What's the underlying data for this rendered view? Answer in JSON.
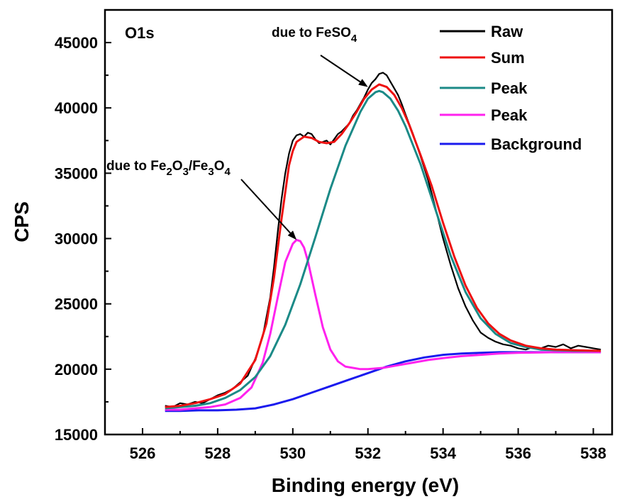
{
  "chart_data": {
    "type": "line",
    "panel_label": "O1s",
    "xlabel": "Binding energy (eV)",
    "ylabel": "CPS",
    "xlim": [
      525,
      538.5
    ],
    "ylim": [
      15000,
      47500
    ],
    "x_ticks": [
      526,
      528,
      530,
      532,
      534,
      536,
      538
    ],
    "y_ticks": [
      15000,
      20000,
      25000,
      30000,
      35000,
      40000,
      45000
    ],
    "legend_position": "top-right",
    "series": [
      {
        "name": "Raw",
        "color": "#000000",
        "x": [
          526.6,
          526.8,
          527.0,
          527.2,
          527.4,
          527.6,
          527.8,
          528.0,
          528.2,
          528.4,
          528.6,
          528.8,
          529.0,
          529.2,
          529.4,
          529.5,
          529.6,
          529.7,
          529.8,
          529.9,
          530.0,
          530.1,
          530.2,
          530.3,
          530.4,
          530.5,
          530.6,
          530.7,
          530.8,
          530.9,
          531.0,
          531.1,
          531.2,
          531.3,
          531.4,
          531.5,
          531.6,
          531.7,
          531.8,
          531.9,
          532.0,
          532.1,
          532.2,
          532.3,
          532.4,
          532.5,
          532.6,
          532.7,
          532.8,
          532.9,
          533.0,
          533.2,
          533.4,
          533.6,
          533.8,
          534.0,
          534.2,
          534.4,
          534.6,
          534.8,
          535.0,
          535.2,
          535.4,
          535.6,
          535.8,
          536.0,
          536.2,
          536.4,
          536.6,
          536.8,
          537.0,
          537.2,
          537.4,
          537.6,
          537.8,
          538.0,
          538.2
        ],
        "y": [
          17200,
          17100,
          17400,
          17300,
          17500,
          17400,
          17700,
          18000,
          18200,
          18500,
          19000,
          19500,
          20800,
          22500,
          25500,
          27800,
          30500,
          33000,
          35000,
          36500,
          37500,
          37900,
          38000,
          37800,
          38100,
          38000,
          37600,
          37300,
          37400,
          37500,
          37200,
          37600,
          38000,
          38200,
          38500,
          38800,
          39400,
          39800,
          40300,
          40800,
          41400,
          41900,
          42200,
          42600,
          42700,
          42500,
          42000,
          41500,
          41000,
          40300,
          39500,
          38000,
          36300,
          34500,
          32300,
          30000,
          28000,
          26200,
          24800,
          23700,
          22800,
          22400,
          22100,
          21900,
          21800,
          21600,
          21500,
          21700,
          21600,
          21800,
          21700,
          21900,
          21600,
          21800,
          21700,
          21600,
          21500
        ]
      },
      {
        "name": "Sum",
        "color": "#ee1111",
        "x": [
          526.6,
          527.0,
          527.4,
          527.8,
          528.2,
          528.6,
          529.0,
          529.3,
          529.5,
          529.7,
          529.9,
          530.0,
          530.1,
          530.3,
          530.5,
          530.7,
          530.9,
          531.1,
          531.3,
          531.5,
          531.7,
          531.9,
          532.1,
          532.3,
          532.5,
          532.7,
          532.9,
          533.1,
          533.4,
          533.7,
          534.0,
          534.3,
          534.6,
          534.9,
          535.2,
          535.5,
          535.8,
          536.2,
          536.6,
          537.0,
          537.5,
          538.2
        ],
        "y": [
          17100,
          17200,
          17400,
          17700,
          18100,
          18900,
          20700,
          23500,
          27000,
          31500,
          35600,
          36700,
          37400,
          37800,
          37700,
          37400,
          37300,
          37400,
          38000,
          38800,
          39700,
          40700,
          41400,
          41800,
          41600,
          41000,
          40000,
          38700,
          36400,
          34000,
          31200,
          28600,
          26400,
          24700,
          23500,
          22700,
          22200,
          21800,
          21600,
          21500,
          21450,
          21400
        ]
      },
      {
        "name": "Peak",
        "color": "#1b8a87",
        "x": [
          526.6,
          527.0,
          527.4,
          527.8,
          528.2,
          528.6,
          529.0,
          529.4,
          529.8,
          530.2,
          530.6,
          531.0,
          531.4,
          531.8,
          532.0,
          532.2,
          532.3,
          532.4,
          532.6,
          532.8,
          533.0,
          533.4,
          533.8,
          534.2,
          534.6,
          535.0,
          535.4,
          535.8,
          536.2,
          536.6,
          537.0,
          537.5,
          538.2
        ],
        "y": [
          17000,
          17100,
          17200,
          17400,
          17800,
          18400,
          19400,
          21000,
          23400,
          26500,
          30100,
          33800,
          37100,
          39700,
          40700,
          41200,
          41300,
          41200,
          40700,
          39800,
          38600,
          35700,
          32200,
          28700,
          25900,
          23900,
          22700,
          22000,
          21700,
          21500,
          21450,
          21400,
          21400
        ]
      },
      {
        "name": "Peak",
        "color": "#ff22ee",
        "x": [
          526.6,
          527.0,
          527.4,
          527.8,
          528.2,
          528.6,
          528.9,
          529.2,
          529.4,
          529.6,
          529.8,
          530.0,
          530.1,
          530.2,
          530.3,
          530.4,
          530.6,
          530.8,
          531.0,
          531.2,
          531.4,
          531.6,
          531.8,
          532.0,
          532.4,
          532.8,
          533.2,
          533.6,
          534.0,
          534.5,
          535.0,
          535.5,
          536.0,
          537.0,
          538.2
        ],
        "y": [
          16900,
          16900,
          17000,
          17100,
          17300,
          17800,
          18600,
          20500,
          22700,
          25500,
          28200,
          29600,
          29900,
          29800,
          29300,
          28300,
          25700,
          23200,
          21500,
          20600,
          20200,
          20100,
          20000,
          20000,
          20100,
          20300,
          20500,
          20700,
          20850,
          21000,
          21100,
          21200,
          21250,
          21300,
          21300
        ]
      },
      {
        "name": "Background",
        "color": "#1a1aee",
        "x": [
          526.6,
          527.0,
          527.5,
          528.0,
          528.5,
          529.0,
          529.5,
          530.0,
          530.5,
          531.0,
          531.5,
          532.0,
          532.5,
          533.0,
          533.5,
          534.0,
          534.5,
          535.0,
          535.5,
          536.0,
          536.5,
          537.0,
          537.5,
          538.2
        ],
        "y": [
          16800,
          16800,
          16850,
          16850,
          16900,
          17000,
          17300,
          17700,
          18200,
          18700,
          19200,
          19700,
          20200,
          20600,
          20900,
          21100,
          21200,
          21250,
          21300,
          21300,
          21300,
          21300,
          21300,
          21300
        ]
      }
    ],
    "annotations": [
      {
        "text": "due to FeSO",
        "subscript": "4",
        "target_x": 532.0,
        "target_y": 41600
      },
      {
        "text_parts": [
          "due to Fe",
          "2",
          "O",
          "3",
          "/Fe",
          "3",
          "O",
          "4"
        ],
        "target_x": 530.1,
        "target_y": 29900
      }
    ]
  }
}
